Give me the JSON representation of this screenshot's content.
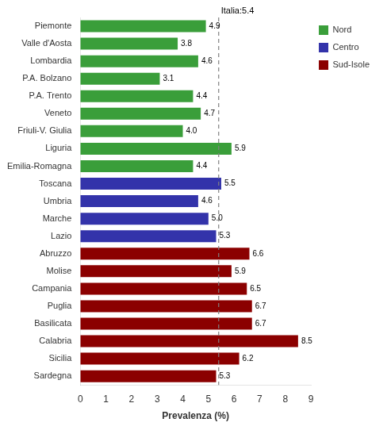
{
  "chart_data": {
    "type": "bar",
    "orientation": "horizontal",
    "xlabel": "Prevalenza (%)",
    "categories": [
      "Sardegna",
      "Sicilia",
      "Calabria",
      "Basilicata",
      "Puglia",
      "Campania",
      "Molise",
      "Abruzzo",
      "Lazio",
      "Marche",
      "Umbria",
      "Toscana",
      "Emilia-Romagna",
      "Liguria",
      "Friuli-V. Giulia",
      "Veneto",
      "P.A. Trento",
      "P.A. Bolzano",
      "Lombardia",
      "Valle d'Aosta",
      "Piemonte"
    ],
    "series": [
      {
        "name": "Nord",
        "color": "#3A9E3A",
        "values": [
          null,
          null,
          null,
          null,
          null,
          null,
          null,
          null,
          null,
          null,
          null,
          null,
          4.4,
          5.9,
          4.0,
          4.7,
          4.4,
          3.1,
          4.6,
          3.8,
          4.9
        ],
        "value_labels": [
          null,
          null,
          null,
          null,
          null,
          null,
          null,
          null,
          null,
          null,
          null,
          null,
          "4.4",
          "5.9",
          "4.0",
          "4.7",
          "4.4",
          "3.1",
          "4.6",
          "3.8",
          "4.9"
        ]
      },
      {
        "name": "Centro",
        "color": "#3333AA",
        "values": [
          null,
          null,
          null,
          null,
          null,
          null,
          null,
          null,
          5.3,
          5.0,
          4.6,
          5.5,
          null,
          null,
          null,
          null,
          null,
          null,
          null,
          null,
          null
        ],
        "value_labels": [
          null,
          null,
          null,
          null,
          null,
          null,
          null,
          null,
          "5.3",
          "5.0",
          "4.6",
          "5.5",
          null,
          null,
          null,
          null,
          null,
          null,
          null,
          null,
          null
        ]
      },
      {
        "name": "Sud-Isole",
        "color": "#8B0000",
        "values": [
          5.3,
          6.2,
          8.5,
          6.7,
          6.7,
          6.5,
          5.9,
          6.6,
          null,
          null,
          null,
          null,
          null,
          null,
          null,
          null,
          null,
          null,
          null,
          null,
          null
        ],
        "value_labels": [
          "5.3",
          "6.2",
          "8.5",
          "6.7",
          "6.7",
          "6.5",
          "5.9",
          "6.6",
          null,
          null,
          null,
          null,
          null,
          null,
          null,
          null,
          null,
          null,
          null,
          null,
          null
        ]
      }
    ],
    "xlim": [
      0,
      9
    ],
    "xticks": [
      0,
      1,
      2,
      3,
      4,
      5,
      6,
      7,
      8,
      9
    ],
    "annotations": [
      {
        "x": 5.4,
        "text": "Italia:5.4",
        "line_style": "dashed"
      }
    ],
    "data_labels": true,
    "grid": false,
    "legend": "right"
  }
}
